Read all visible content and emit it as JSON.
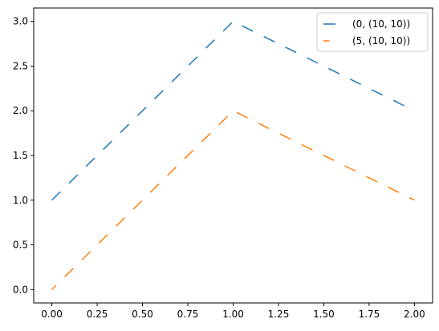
{
  "chart_data": {
    "type": "line",
    "title": "",
    "xlabel": "",
    "ylabel": "",
    "xlim": [
      -0.1,
      2.1
    ],
    "ylim": [
      -0.15,
      3.15
    ],
    "xticks": [
      0.0,
      0.25,
      0.5,
      0.75,
      1.0,
      1.25,
      1.5,
      1.75,
      2.0
    ],
    "xtick_labels": [
      "0.00",
      "0.25",
      "0.50",
      "0.75",
      "1.00",
      "1.25",
      "1.50",
      "1.75",
      "2.00"
    ],
    "yticks": [
      0.0,
      0.5,
      1.0,
      1.5,
      2.0,
      2.5,
      3.0
    ],
    "ytick_labels": [
      "0.0",
      "0.5",
      "1.0",
      "1.5",
      "2.0",
      "2.5",
      "3.0"
    ],
    "grid": false,
    "legend_position": "top-right",
    "series": [
      {
        "name": "(0, (10, 10))",
        "color": "#1f77b4",
        "dash_offset": 0,
        "dash_pattern": [
          10,
          10
        ],
        "x": [
          0,
          1,
          2
        ],
        "y": [
          1,
          3,
          2
        ]
      },
      {
        "name": "(5, (10, 10))",
        "color": "#ff7f0e",
        "dash_offset": 5,
        "dash_pattern": [
          10,
          10
        ],
        "x": [
          0,
          1,
          2
        ],
        "y": [
          0,
          2,
          1
        ]
      }
    ]
  }
}
